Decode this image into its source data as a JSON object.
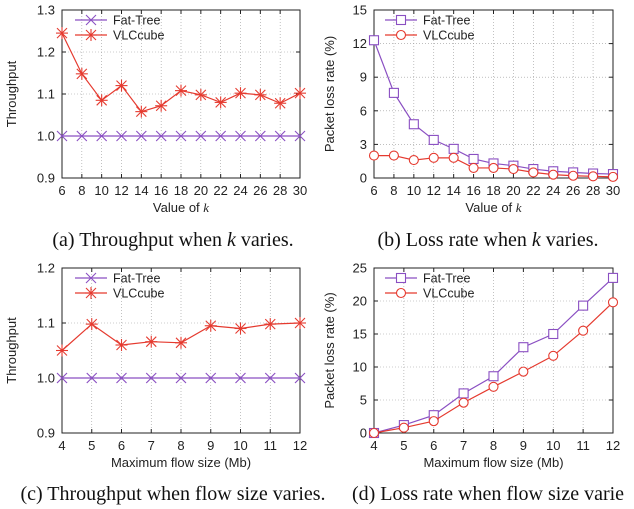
{
  "colors": {
    "fat_tree": "#8a4fc2",
    "vlccube": "#e53a2f",
    "axis": "#222222",
    "grid": "#999999"
  },
  "chart_data": [
    {
      "id": "a",
      "type": "line",
      "caption": "(a) Throughput when k varies.",
      "xlabel": "Value of k",
      "ylabel": "Throughput",
      "x": [
        6,
        8,
        10,
        12,
        14,
        16,
        18,
        20,
        22,
        24,
        26,
        28,
        30
      ],
      "xlim": [
        6,
        30
      ],
      "ylim": [
        0.9,
        1.3
      ],
      "xticks": [
        "6",
        "8",
        "10",
        "12",
        "14",
        "16",
        "18",
        "20",
        "22",
        "24",
        "26",
        "28",
        "30"
      ],
      "yticks": [
        "0.9",
        "1.0",
        "1.1",
        "1.2",
        "1.3"
      ],
      "ytick_values": [
        0.9,
        1.0,
        1.1,
        1.2,
        1.3
      ],
      "grid": true,
      "legend": "top-left",
      "series": [
        {
          "name": "Fat-Tree",
          "marker": "x",
          "values": [
            1.0,
            1.0,
            1.0,
            1.0,
            1.0,
            1.0,
            1.0,
            1.0,
            1.0,
            1.0,
            1.0,
            1.0,
            1.0
          ]
        },
        {
          "name": "VLCcube",
          "marker": "star",
          "values": [
            1.245,
            1.148,
            1.085,
            1.12,
            1.058,
            1.072,
            1.108,
            1.098,
            1.08,
            1.102,
            1.098,
            1.078,
            1.102
          ]
        }
      ]
    },
    {
      "id": "b",
      "type": "line",
      "caption": "(b) Loss rate when k varies.",
      "xlabel": "Value of k",
      "ylabel": "Packet loss rate (%)",
      "x": [
        6,
        8,
        10,
        12,
        14,
        16,
        18,
        20,
        22,
        24,
        26,
        28,
        30
      ],
      "xlim": [
        6,
        30
      ],
      "ylim": [
        0,
        15
      ],
      "xticks": [
        "6",
        "8",
        "10",
        "12",
        "14",
        "16",
        "18",
        "20",
        "22",
        "24",
        "26",
        "28",
        "30"
      ],
      "yticks": [
        "0",
        "3",
        "6",
        "9",
        "12",
        "15"
      ],
      "ytick_values": [
        0,
        3,
        6,
        9,
        12,
        15
      ],
      "grid": true,
      "legend": "top-right",
      "series": [
        {
          "name": "Fat-Tree",
          "marker": "square",
          "values": [
            12.3,
            7.6,
            4.8,
            3.4,
            2.6,
            1.7,
            1.3,
            1.1,
            0.8,
            0.6,
            0.5,
            0.4,
            0.35
          ]
        },
        {
          "name": "VLCcube",
          "marker": "circle",
          "values": [
            2.0,
            2.0,
            1.6,
            1.8,
            1.8,
            0.9,
            0.9,
            0.8,
            0.5,
            0.3,
            0.2,
            0.15,
            0.1
          ]
        }
      ]
    },
    {
      "id": "c",
      "type": "line",
      "caption": "(c) Throughput when flow size varies.",
      "xlabel": "Maximum flow size (Mb)",
      "ylabel": "Throughput",
      "x": [
        4,
        5,
        6,
        7,
        8,
        9,
        10,
        11,
        12
      ],
      "xlim": [
        4,
        12
      ],
      "ylim": [
        0.9,
        1.2
      ],
      "xticks": [
        "4",
        "5",
        "6",
        "7",
        "8",
        "9",
        "10",
        "11",
        "12"
      ],
      "yticks": [
        "0.9",
        "1.0",
        "1.1",
        "1.2"
      ],
      "ytick_values": [
        0.9,
        1.0,
        1.1,
        1.2
      ],
      "grid": true,
      "legend": "top-left",
      "series": [
        {
          "name": "Fat-Tree",
          "marker": "x",
          "values": [
            1.0,
            1.0,
            1.0,
            1.0,
            1.0,
            1.0,
            1.0,
            1.0,
            1.0
          ]
        },
        {
          "name": "VLCcube",
          "marker": "star",
          "values": [
            1.05,
            1.098,
            1.06,
            1.066,
            1.064,
            1.095,
            1.09,
            1.098,
            1.1
          ]
        }
      ]
    },
    {
      "id": "d",
      "type": "line",
      "caption": "(d) Loss rate when flow size varie",
      "xlabel": "Maximum flow size (Mb)",
      "ylabel": "Packet loss rate (%)",
      "x": [
        4,
        5,
        6,
        7,
        8,
        9,
        10,
        11,
        12
      ],
      "xlim": [
        4,
        12
      ],
      "ylim": [
        0,
        25
      ],
      "xticks": [
        "4",
        "5",
        "6",
        "7",
        "8",
        "9",
        "10",
        "11",
        "12"
      ],
      "yticks": [
        "0",
        "5",
        "10",
        "15",
        "20",
        "25"
      ],
      "ytick_values": [
        0,
        5,
        10,
        15,
        20,
        25
      ],
      "grid": true,
      "legend": "top-left",
      "series": [
        {
          "name": "Fat-Tree",
          "marker": "square",
          "values": [
            0,
            1.2,
            2.7,
            6.0,
            8.6,
            13.0,
            15.0,
            19.3,
            23.5
          ]
        },
        {
          "name": "VLCcube",
          "marker": "circle",
          "values": [
            0,
            0.8,
            1.8,
            4.6,
            7.0,
            9.3,
            11.7,
            15.5,
            19.8
          ]
        }
      ]
    }
  ]
}
